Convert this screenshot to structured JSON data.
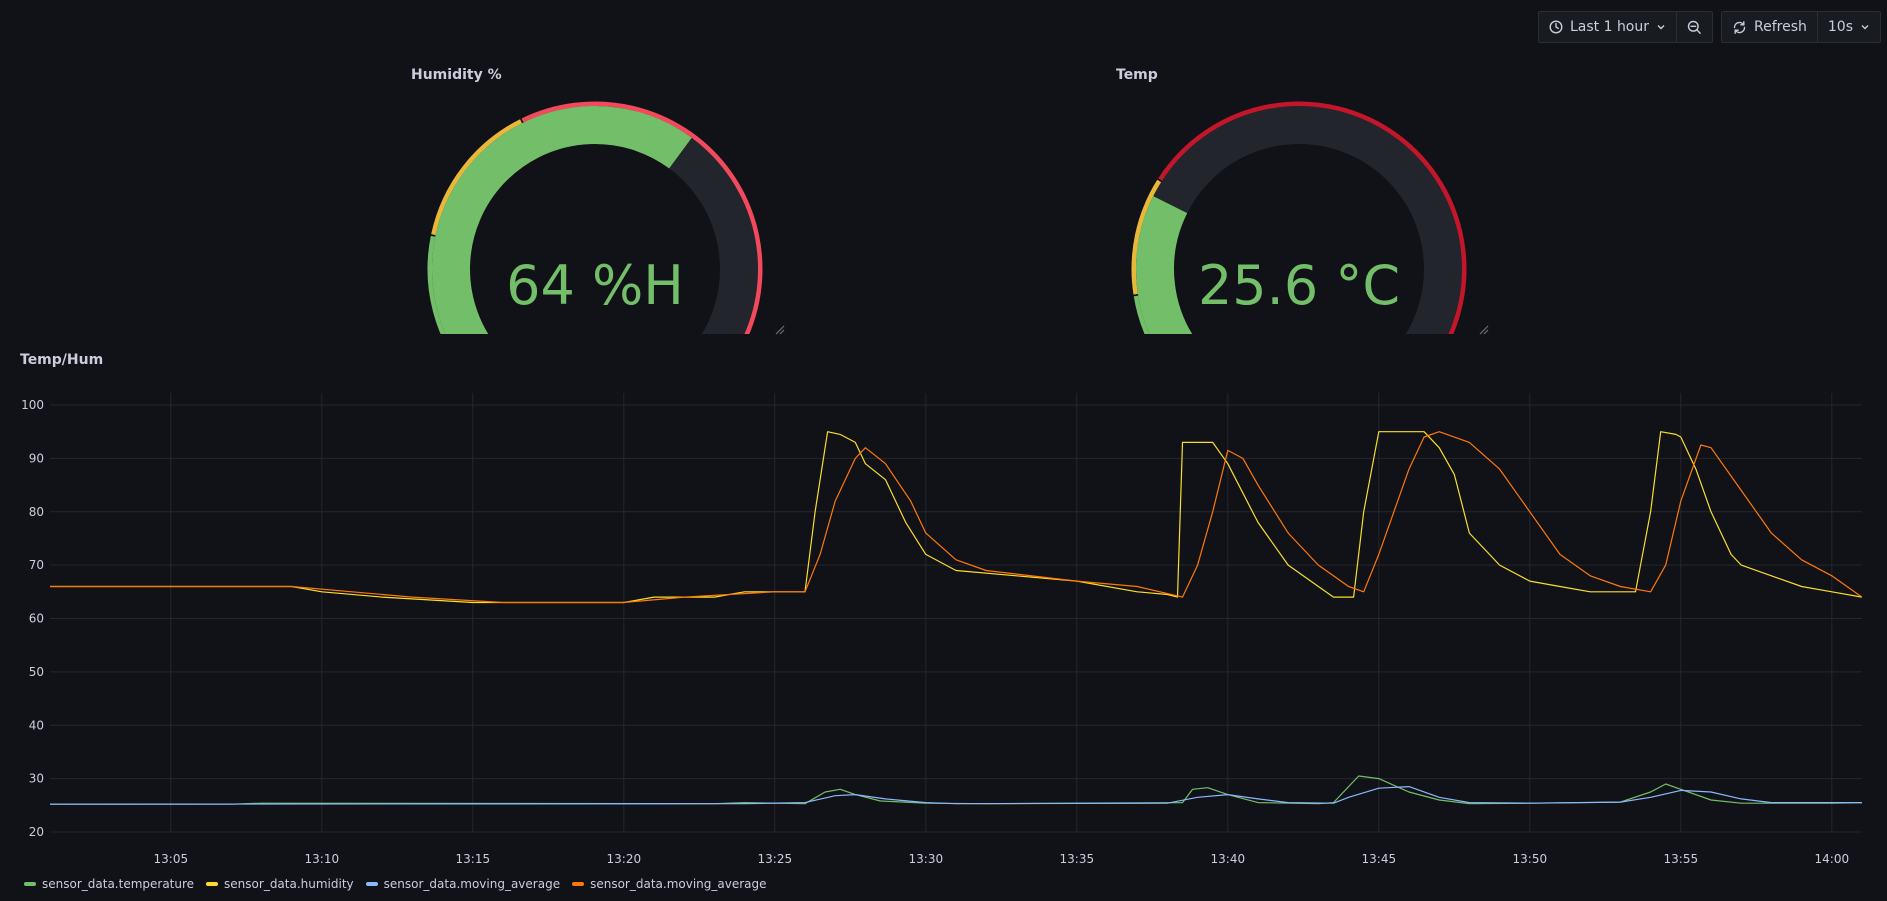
{
  "toolbar": {
    "time_range_label": "Last 1 hour",
    "refresh_label": "Refresh",
    "interval_label": "10s"
  },
  "gauges": [
    {
      "title": "Humidity %",
      "value": 64,
      "display": "64 %H",
      "min": 0,
      "max": 100,
      "thresholds": [
        {
          "value": 0,
          "color": "#73bf69"
        },
        {
          "value": 20,
          "color": "#eab839"
        },
        {
          "value": 40,
          "color": "#f2495c"
        }
      ]
    },
    {
      "title": "Temp",
      "value": 25.6,
      "display": "25.6 °C",
      "min": 0,
      "max": 100,
      "thresholds": [
        {
          "value": 0,
          "color": "#73bf69"
        },
        {
          "value": 12,
          "color": "#eab839"
        },
        {
          "value": 28,
          "color": "#c4162a"
        }
      ]
    }
  ],
  "chart_panel": {
    "title": "Temp/Hum"
  },
  "chart_data": {
    "type": "line",
    "title": "Temp/Hum",
    "xlim": [
      "13:01",
      "14:01"
    ],
    "ylim": [
      20,
      100
    ],
    "xticks": [
      "13:05",
      "13:10",
      "13:15",
      "13:20",
      "13:25",
      "13:30",
      "13:35",
      "13:40",
      "13:45",
      "13:50",
      "13:55",
      "14:00"
    ],
    "yticks": [
      20,
      30,
      40,
      50,
      60,
      70,
      80,
      90,
      100
    ],
    "grid": true,
    "legend_position": "bottom-left",
    "series": [
      {
        "name": "sensor_data.temperature",
        "color": "#73bf69",
        "points": [
          [
            "13:01",
            25.2
          ],
          [
            "13:07",
            25.2
          ],
          [
            "13:08",
            25.4
          ],
          [
            "13:23",
            25.3
          ],
          [
            "13:24",
            25.5
          ],
          [
            "13:26",
            25.3
          ],
          [
            "13:26:40",
            27.5
          ],
          [
            "13:27:10",
            28
          ],
          [
            "13:27:40",
            27
          ],
          [
            "13:28:30",
            25.8
          ],
          [
            "13:30",
            25.4
          ],
          [
            "13:32",
            25.3
          ],
          [
            "13:38:30",
            25.5
          ],
          [
            "13:38:50",
            28
          ],
          [
            "13:39:20",
            28.3
          ],
          [
            "13:40",
            27
          ],
          [
            "13:41",
            25.5
          ],
          [
            "13:43",
            25.3
          ],
          [
            "13:43:30",
            25.5
          ],
          [
            "13:44",
            28.5
          ],
          [
            "13:44:20",
            30.5
          ],
          [
            "13:45",
            30
          ],
          [
            "13:46",
            27.5
          ],
          [
            "13:47",
            26
          ],
          [
            "13:48",
            25.3
          ],
          [
            "13:50",
            25.4
          ],
          [
            "13:53",
            25.6
          ],
          [
            "13:54",
            27.5
          ],
          [
            "13:54:30",
            29
          ],
          [
            "13:55",
            28
          ],
          [
            "13:56",
            26
          ],
          [
            "13:57",
            25.4
          ],
          [
            "14:00",
            25.4
          ],
          [
            "14:01",
            25.5
          ]
        ]
      },
      {
        "name": "sensor_data.humidity",
        "color": "#fade2a",
        "points": [
          [
            "13:01",
            66
          ],
          [
            "13:09",
            66
          ],
          [
            "13:10",
            65
          ],
          [
            "13:12",
            64
          ],
          [
            "13:15",
            63
          ],
          [
            "13:18",
            63
          ],
          [
            "13:20",
            63
          ],
          [
            "13:21",
            64
          ],
          [
            "13:23",
            64
          ],
          [
            "13:24",
            65
          ],
          [
            "13:26",
            65
          ],
          [
            "13:26:20",
            80
          ],
          [
            "13:26:45",
            95
          ],
          [
            "13:27:10",
            94.5
          ],
          [
            "13:27:40",
            93
          ],
          [
            "13:28",
            89
          ],
          [
            "13:28:40",
            86
          ],
          [
            "13:29:20",
            78
          ],
          [
            "13:30",
            72
          ],
          [
            "13:31",
            69
          ],
          [
            "13:33",
            68
          ],
          [
            "13:35",
            67
          ],
          [
            "13:37",
            65
          ],
          [
            "13:38",
            64.5
          ],
          [
            "13:38:20",
            64
          ],
          [
            "13:38:30",
            93
          ],
          [
            "13:39:30",
            93
          ],
          [
            "13:40",
            89
          ],
          [
            "13:41",
            78
          ],
          [
            "13:42",
            70
          ],
          [
            "13:43",
            66
          ],
          [
            "13:43:30",
            64
          ],
          [
            "13:44:10",
            64
          ],
          [
            "13:44:30",
            80
          ],
          [
            "13:45",
            95
          ],
          [
            "13:46:30",
            95
          ],
          [
            "13:47",
            92
          ],
          [
            "13:47:30",
            87
          ],
          [
            "13:48",
            76
          ],
          [
            "13:48:40",
            72
          ],
          [
            "13:49",
            70
          ],
          [
            "13:50",
            67
          ],
          [
            "13:51",
            66
          ],
          [
            "13:52",
            65
          ],
          [
            "13:53:30",
            65
          ],
          [
            "13:54",
            80
          ],
          [
            "13:54:20",
            95
          ],
          [
            "13:54:50",
            94.5
          ],
          [
            "13:55",
            94
          ],
          [
            "13:55:30",
            88
          ],
          [
            "13:56",
            80
          ],
          [
            "13:56:40",
            72
          ],
          [
            "13:57",
            70
          ],
          [
            "13:58",
            68
          ],
          [
            "13:59",
            66
          ],
          [
            "14:00",
            65
          ],
          [
            "14:01",
            64
          ]
        ]
      },
      {
        "name": "sensor_data.moving_average",
        "color": "#8ab8ff",
        "points": [
          [
            "13:01",
            25.2
          ],
          [
            "13:24",
            25.3
          ],
          [
            "13:26",
            25.5
          ],
          [
            "13:27",
            26.8
          ],
          [
            "13:27:40",
            27
          ],
          [
            "13:28:40",
            26.2
          ],
          [
            "13:30",
            25.5
          ],
          [
            "13:31",
            25.3
          ],
          [
            "13:38",
            25.4
          ],
          [
            "13:39",
            26.5
          ],
          [
            "13:40",
            27
          ],
          [
            "13:41",
            26.2
          ],
          [
            "13:42",
            25.5
          ],
          [
            "13:43:30",
            25.4
          ],
          [
            "13:44",
            26.5
          ],
          [
            "13:45",
            28.2
          ],
          [
            "13:46",
            28.5
          ],
          [
            "13:47",
            26.5
          ],
          [
            "13:48",
            25.5
          ],
          [
            "13:50",
            25.4
          ],
          [
            "13:53",
            25.6
          ],
          [
            "13:54",
            26.5
          ],
          [
            "13:55",
            27.8
          ],
          [
            "13:56",
            27.5
          ],
          [
            "13:57",
            26.2
          ],
          [
            "13:58",
            25.5
          ],
          [
            "14:01",
            25.5
          ]
        ]
      },
      {
        "name": "sensor_data.moving_average",
        "color": "#ff780a",
        "points": [
          [
            "13:01",
            66
          ],
          [
            "13:09",
            66
          ],
          [
            "13:11",
            65
          ],
          [
            "13:13",
            64
          ],
          [
            "13:16",
            63
          ],
          [
            "13:20",
            63
          ],
          [
            "13:22",
            64
          ],
          [
            "13:25",
            65
          ],
          [
            "13:26",
            65
          ],
          [
            "13:26:30",
            72
          ],
          [
            "13:27",
            82
          ],
          [
            "13:27:40",
            90
          ],
          [
            "13:28",
            92
          ],
          [
            "13:28:40",
            89
          ],
          [
            "13:29:30",
            82
          ],
          [
            "13:30",
            76
          ],
          [
            "13:31",
            71
          ],
          [
            "13:32",
            69
          ],
          [
            "13:35",
            67
          ],
          [
            "13:37",
            66
          ],
          [
            "13:38:30",
            64
          ],
          [
            "13:39",
            70
          ],
          [
            "13:39:30",
            80
          ],
          [
            "13:40",
            91.5
          ],
          [
            "13:40:30",
            90
          ],
          [
            "13:41",
            85
          ],
          [
            "13:42",
            76
          ],
          [
            "13:43",
            70
          ],
          [
            "13:44",
            66
          ],
          [
            "13:44:30",
            65
          ],
          [
            "13:45",
            72
          ],
          [
            "13:46",
            88
          ],
          [
            "13:46:30",
            94
          ],
          [
            "13:47",
            95
          ],
          [
            "13:48",
            93
          ],
          [
            "13:49",
            88
          ],
          [
            "13:50",
            80
          ],
          [
            "13:51",
            72
          ],
          [
            "13:52",
            68
          ],
          [
            "13:53",
            66
          ],
          [
            "13:54",
            65
          ],
          [
            "13:54:30",
            70
          ],
          [
            "13:55",
            82
          ],
          [
            "13:55:40",
            92.5
          ],
          [
            "13:56",
            92
          ],
          [
            "13:57",
            84
          ],
          [
            "13:58",
            76
          ],
          [
            "13:59",
            71
          ],
          [
            "14:00",
            68
          ],
          [
            "14:01",
            64
          ]
        ]
      }
    ]
  }
}
